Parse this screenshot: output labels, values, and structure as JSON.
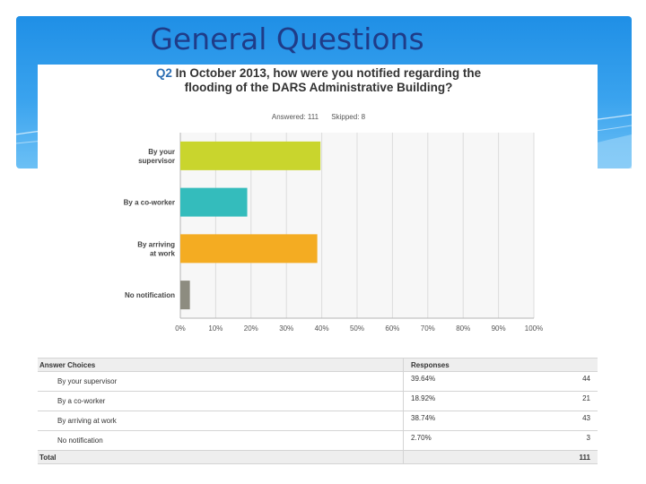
{
  "slide": {
    "title": "General Questions"
  },
  "question": {
    "number": "Q2",
    "text": "In October 2013, how were you notified regarding the flooding of the DARS Administrative Building?",
    "answered_label": "Answered: 111",
    "skipped_label": "Skipped: 8"
  },
  "chart_data": {
    "type": "bar",
    "orientation": "horizontal",
    "categories": [
      "By your supervisor",
      "By a co-worker",
      "By arriving at work",
      "No notification"
    ],
    "values": [
      39.64,
      18.92,
      38.74,
      2.7
    ],
    "colors": [
      "#c9d52d",
      "#34bcbc",
      "#f4ac22",
      "#8d8c80"
    ],
    "xlim": [
      0,
      100
    ],
    "xticks": [
      "0%",
      "10%",
      "20%",
      "30%",
      "40%",
      "50%",
      "60%",
      "70%",
      "80%",
      "90%",
      "100%"
    ],
    "title": "In October 2013, how were you notified regarding the flooding of the DARS Administrative Building?",
    "xlabel": "",
    "ylabel": "",
    "grid": true
  },
  "table": {
    "headers": {
      "choice": "Answer Choices",
      "responses": "Responses"
    },
    "rows": [
      {
        "choice": "By your supervisor",
        "pct": "39.64%",
        "count": "44"
      },
      {
        "choice": "By a co-worker",
        "pct": "18.92%",
        "count": "21"
      },
      {
        "choice": "By arriving at work",
        "pct": "38.74%",
        "count": "43"
      },
      {
        "choice": "No notification",
        "pct": "2.70%",
        "count": "3"
      }
    ],
    "total": {
      "label": "Total",
      "count": "111"
    }
  }
}
